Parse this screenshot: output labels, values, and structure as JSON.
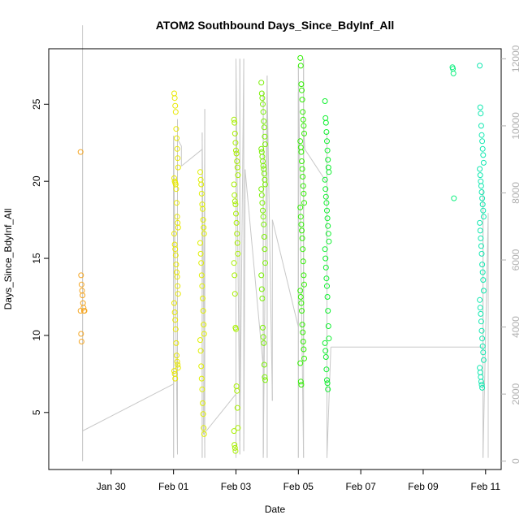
{
  "chart_data": {
    "type": "scatter",
    "title": "ATOM2 Southbound Days_Since_BdyInf_All",
    "xlabel": "Date",
    "ylabel": "Days_Since_BdyInf_All",
    "xlim": [
      "2018-01-28T00:00",
      "2018-02-11T12:00"
    ],
    "ylim": [
      1.3,
      28.6
    ],
    "y2lim": [
      -250,
      12300
    ],
    "x_ticks": [
      {
        "date": "2018-01-30",
        "label": "Jan 30"
      },
      {
        "date": "2018-02-01",
        "label": "Feb 01"
      },
      {
        "date": "2018-02-03",
        "label": "Feb 03"
      },
      {
        "date": "2018-02-05",
        "label": "Feb 05"
      },
      {
        "date": "2018-02-07",
        "label": "Feb 07"
      },
      {
        "date": "2018-02-09",
        "label": "Feb 09"
      },
      {
        "date": "2018-02-11",
        "label": "Feb 11"
      }
    ],
    "y_ticks": [
      5,
      10,
      15,
      20,
      25
    ],
    "y2_ticks": [
      0,
      2000,
      4000,
      6000,
      8000,
      10000,
      12000
    ],
    "grid": false,
    "legend": "none",
    "colors": {
      "line": "#c8c8c8",
      "right_axis": "#b0b0b0",
      "axis": "#000000"
    },
    "point_series": [
      {
        "date": "2018-01-29T02:00",
        "color": "#f5a623",
        "values": [
          21.9,
          13.9,
          13.3,
          12.9,
          12.6,
          12.1,
          11.8,
          11.6,
          11.6,
          11.6,
          10.1,
          9.6
        ]
      },
      {
        "date": "2018-02-01T02:00",
        "color": "#e8e800",
        "values": [
          25.7,
          25.4,
          24.9,
          24.5,
          23.4,
          22.8,
          22.1,
          21.5,
          20.9,
          20.2,
          20.0,
          19.9,
          19.8,
          19.5,
          18.6,
          17.7,
          17.3,
          17.0,
          16.6,
          15.9,
          15.6,
          15.2,
          14.6,
          14.1,
          13.8,
          13.2,
          12.7,
          12.1,
          11.5,
          11.0,
          10.4,
          9.5,
          8.7,
          8.3,
          8.1,
          7.9,
          7.7,
          7.5,
          7.2
        ]
      },
      {
        "date": "2018-02-01T22:00",
        "color": "#e0f000",
        "values": [
          20.6,
          20.1,
          19.8,
          19.2,
          18.5,
          18.2,
          17.5,
          17.0,
          16.6,
          16.0,
          15.3,
          14.7,
          13.9,
          13.2,
          12.4,
          11.6,
          10.7,
          10.1,
          9.7,
          9.0,
          8.0,
          7.2,
          6.5,
          5.6,
          4.9,
          4.0,
          3.6
        ]
      },
      {
        "date": "2018-02-03T00:00",
        "color": "#a8f000",
        "values": [
          24.0,
          23.8,
          23.1,
          22.5,
          22.0,
          21.8,
          21.3,
          20.9,
          20.4,
          19.8,
          19.1,
          18.7,
          18.5,
          17.9,
          17.3,
          16.6,
          16.0,
          15.3,
          14.7,
          13.9,
          12.7,
          10.5,
          10.4,
          6.7,
          6.4,
          5.3,
          4.0,
          3.8,
          2.9,
          2.7,
          2.5
        ]
      },
      {
        "date": "2018-02-03T21:00",
        "color": "#78f000",
        "values": [
          26.4,
          25.7,
          25.4,
          25.0,
          24.5,
          23.9,
          23.5,
          22.9,
          22.4,
          22.1,
          21.9,
          21.6,
          21.3,
          21.0,
          20.8,
          20.5,
          20.1,
          19.8,
          19.5,
          19.1,
          18.6,
          18.1,
          17.7,
          17.2,
          16.4,
          15.6,
          14.7,
          13.9,
          13.0,
          12.4,
          10.5,
          9.9,
          9.5,
          8.1,
          7.3,
          7.1
        ]
      },
      {
        "date": "2018-02-05T03:00",
        "color": "#30f000",
        "values": [
          28.0,
          27.5,
          26.3,
          25.9,
          25.3,
          24.5,
          24.0,
          23.6,
          23.1,
          22.6,
          22.2,
          21.9,
          21.3,
          20.8,
          20.3,
          19.7,
          19.2,
          18.6,
          18.3,
          17.7,
          17.2,
          16.8,
          16.3,
          15.6,
          14.8,
          13.9,
          13.3,
          12.9,
          12.5,
          12.1,
          11.6,
          10.7,
          10.2,
          9.6,
          9.1,
          8.5,
          8.2,
          7.0,
          6.8
        ]
      },
      {
        "date": "2018-02-05T22:00",
        "color": "#10f030",
        "values": [
          25.2,
          24.1,
          23.8,
          23.2,
          22.6,
          22.0,
          21.4,
          20.9,
          20.6,
          20.1,
          19.5,
          19.0,
          18.6,
          18.1,
          17.6,
          17.1,
          16.6,
          16.1,
          15.6,
          15.0,
          14.4,
          13.7,
          13.2,
          12.5,
          11.6,
          10.6,
          9.8,
          9.5,
          9.0,
          8.6,
          7.8,
          7.1,
          6.9,
          6.5
        ]
      },
      {
        "date": "2018-02-10T00:00",
        "color": "#10f080",
        "values": [
          27.4,
          27.3,
          27.0,
          18.9
        ]
      },
      {
        "date": "2018-02-10T21:00",
        "color": "#10e8b0",
        "values": [
          27.5,
          24.8,
          24.4,
          23.6,
          23.0,
          22.6,
          22.1,
          21.7,
          21.2,
          20.8,
          20.4,
          20.0,
          19.7,
          19.3,
          18.9,
          18.5,
          18.1,
          17.7,
          17.3,
          16.8,
          16.3,
          15.8,
          15.3,
          14.6,
          14.1,
          13.6,
          12.9,
          12.3,
          11.8,
          11.4,
          10.9,
          10.3,
          9.8,
          9.3,
          8.9,
          8.4,
          7.9,
          7.6,
          7.3,
          7.0,
          6.8,
          6.6
        ]
      }
    ],
    "right_axis_series": {
      "name": "",
      "axis": "right",
      "points": [
        [
          "2018-01-29T02:00",
          13000
        ],
        [
          "2018-01-29T02:00",
          1200
        ],
        [
          "2018-01-29T02:00",
          0
        ],
        [
          "2018-01-29T02:00",
          9300
        ],
        [
          "2018-01-29T02:00",
          4800
        ],
        [
          "2018-01-29T02:00",
          900
        ],
        [
          "2018-02-01T00:00",
          2300
        ],
        [
          "2018-02-01T00:00",
          9700
        ],
        [
          "2018-02-01T00:00",
          100
        ],
        [
          "2018-02-01T00:00",
          9500
        ],
        [
          "2018-02-01T03:00",
          200
        ],
        [
          "2018-02-01T03:00",
          10200
        ],
        [
          "2018-02-01T03:00",
          9600
        ],
        [
          "2018-02-01T06:00",
          9400
        ],
        [
          "2018-02-01T06:00",
          8800
        ],
        [
          "2018-02-01T22:00",
          9300
        ],
        [
          "2018-02-01T22:00",
          100
        ],
        [
          "2018-02-01T22:00",
          9800
        ],
        [
          "2018-02-02T00:00",
          100
        ],
        [
          "2018-02-02T00:00",
          10500
        ],
        [
          "2018-02-01T23:00",
          800
        ],
        [
          "2018-02-03T00:00",
          2000
        ],
        [
          "2018-02-03T00:00",
          10000
        ],
        [
          "2018-02-03T00:00",
          100
        ],
        [
          "2018-02-03T00:00",
          12000
        ],
        [
          "2018-02-03T03:00",
          200
        ],
        [
          "2018-02-03T03:00",
          12000
        ],
        [
          "2018-02-03T03:00",
          600
        ],
        [
          "2018-02-03T06:00",
          12000
        ],
        [
          "2018-02-03T06:00",
          300
        ],
        [
          "2018-02-03T07:00",
          7800
        ],
        [
          "2018-02-03T07:00",
          8700
        ],
        [
          "2018-02-03T21:00",
          2800
        ],
        [
          "2018-02-03T21:00",
          100
        ],
        [
          "2018-02-03T21:00",
          11000
        ],
        [
          "2018-02-03T21:00",
          200
        ],
        [
          "2018-02-04T00:00",
          11500
        ],
        [
          "2018-02-04T00:00",
          100
        ],
        [
          "2018-02-04T00:00",
          11200
        ],
        [
          "2018-02-04T04:00",
          1800
        ],
        [
          "2018-02-04T04:00",
          7200
        ],
        [
          "2018-02-05T00:00",
          4000
        ],
        [
          "2018-02-05T00:00",
          11000
        ],
        [
          "2018-02-05T00:00",
          100
        ],
        [
          "2018-02-05T00:00",
          11800
        ],
        [
          "2018-02-05T04:00",
          100
        ],
        [
          "2018-02-05T04:00",
          12000
        ],
        [
          "2018-02-05T04:00",
          3200
        ],
        [
          "2018-02-05T04:00",
          10000
        ],
        [
          "2018-02-05T05:00",
          9300
        ],
        [
          "2018-02-05T22:00",
          8300
        ],
        [
          "2018-02-05T22:00",
          100
        ],
        [
          "2018-02-05T22:00",
          9800
        ],
        [
          "2018-02-05T22:00",
          100
        ],
        [
          "2018-02-06T01:00",
          3400
        ],
        [
          "2018-02-10T22:00",
          3400
        ],
        [
          "2018-02-10T22:00",
          8100
        ],
        [
          "2018-02-10T22:00",
          100
        ],
        [
          "2018-02-11T02:00",
          7400
        ],
        [
          "2018-02-11T02:00",
          100
        ]
      ]
    }
  }
}
